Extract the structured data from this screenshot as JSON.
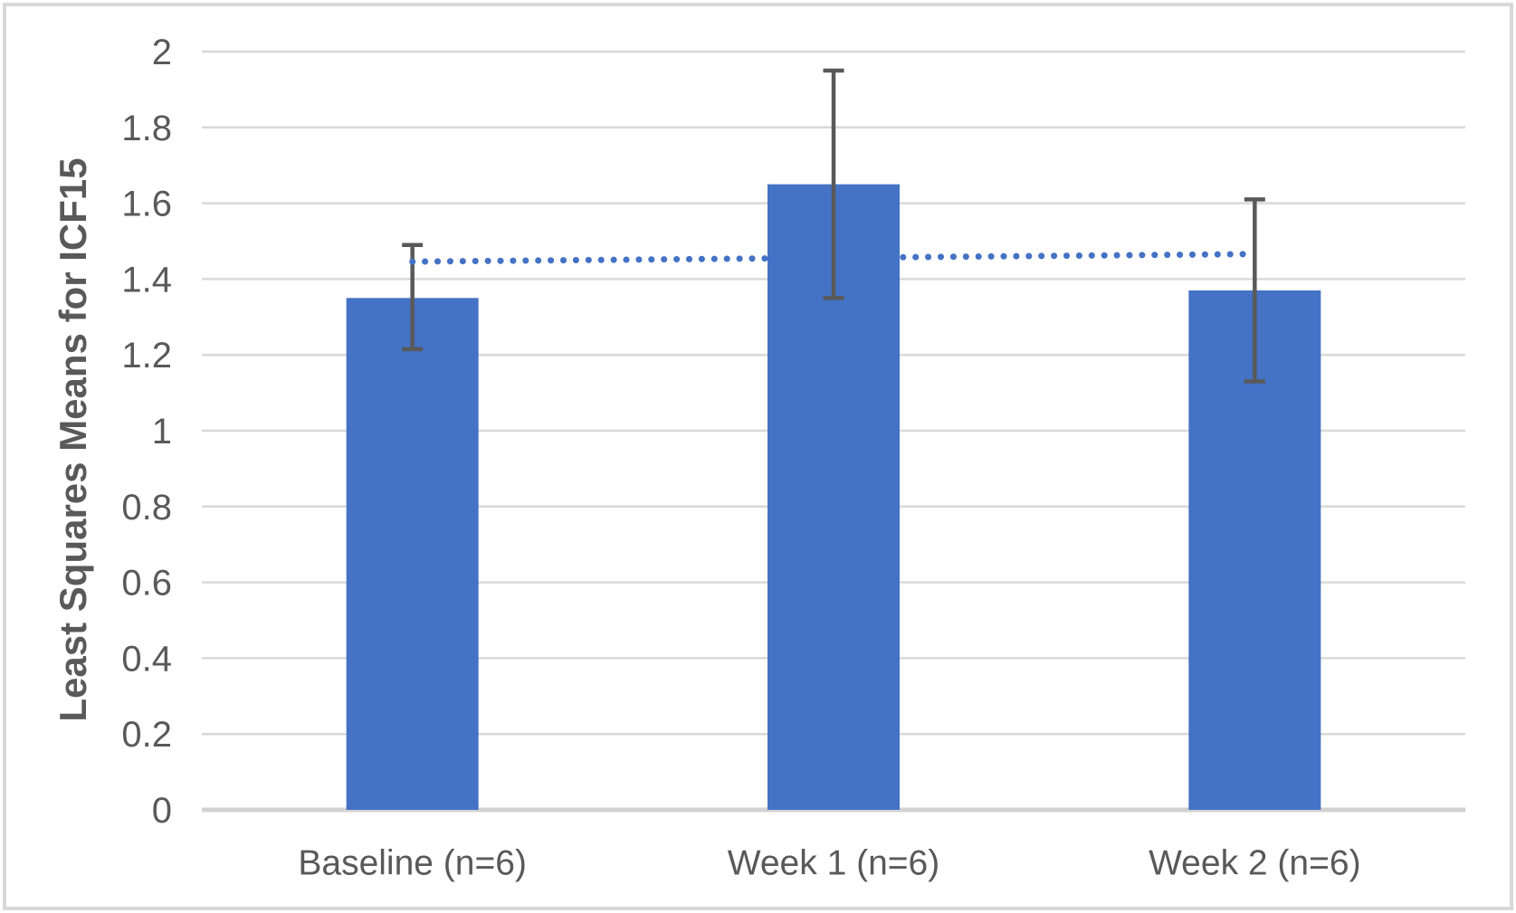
{
  "chart_data": {
    "type": "bar",
    "title": "",
    "xlabel": "",
    "ylabel": "Least Squares Means for ICF15",
    "categories": [
      "Baseline (n=6)",
      "Week 1 (n=6)",
      "Week 2 (n=6)"
    ],
    "values": [
      1.35,
      1.65,
      1.37
    ],
    "error_bars": {
      "lower": [
        1.215,
        1.35,
        1.13
      ],
      "upper": [
        1.49,
        1.95,
        1.61
      ]
    },
    "trendline": {
      "style": "dotted",
      "start_value": 1.446,
      "end_value": 1.466
    },
    "ylim": [
      0,
      2
    ],
    "ytick_step": 0.2,
    "ytick_labels": [
      "2",
      "1.8",
      "1.6",
      "1.4",
      "1.2",
      "1",
      "0.8",
      "0.6",
      "0.4",
      "0.2",
      "0"
    ],
    "grid": true,
    "legend": "none",
    "colors": {
      "bar": "#4472C4",
      "trendline": "#4472C4",
      "error_bar": "#595959",
      "gridline": "#D9D9D9",
      "axis_line": "#D2D2D2",
      "tick_label": "#595959",
      "category_label": "#595959",
      "axis_title": "#595959",
      "frame_border": "#D8D8D8",
      "background": "#FFFFFF"
    }
  }
}
